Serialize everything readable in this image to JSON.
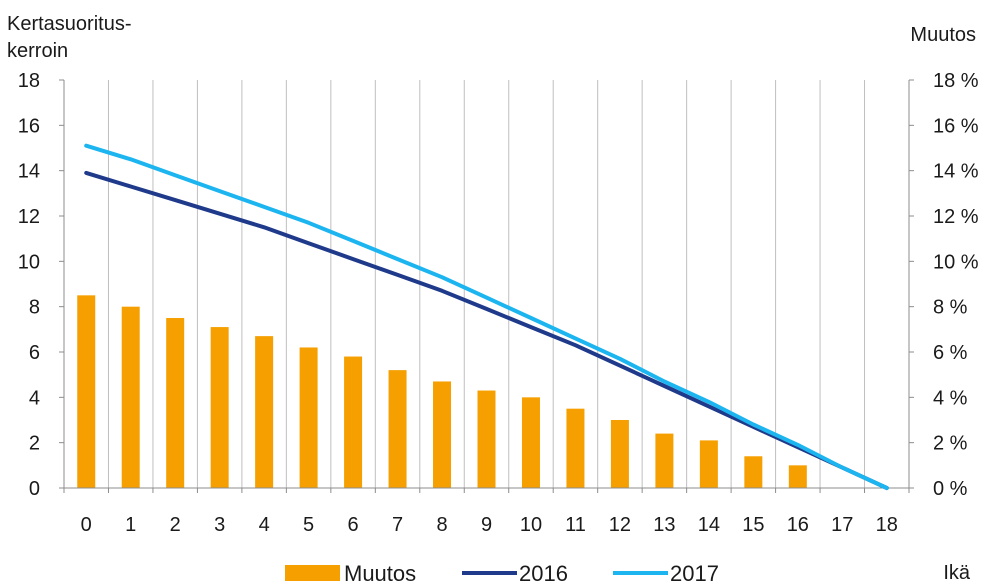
{
  "chart_data": {
    "type": "bar+line",
    "left_axis_label_line1": "Kertasuoritus-",
    "left_axis_label_line2": "kerroin",
    "right_axis_label": "Muutos",
    "xlabel": "Ikä",
    "categories": [
      "0",
      "1",
      "2",
      "3",
      "4",
      "5",
      "6",
      "7",
      "8",
      "9",
      "10",
      "11",
      "12",
      "13",
      "14",
      "15",
      "16",
      "17",
      "18"
    ],
    "y_left": {
      "min": 0,
      "max": 18,
      "ticks": [
        0,
        2,
        4,
        6,
        8,
        10,
        12,
        14,
        16,
        18
      ]
    },
    "y_right": {
      "min": 0,
      "max": 18,
      "ticks": [
        "0 %",
        "2 %",
        "4 %",
        "6 %",
        "8 %",
        "10 %",
        "12 %",
        "14 %",
        "16 %",
        "18 %"
      ]
    },
    "grid": "vertical",
    "legend_position": "bottom",
    "bars": {
      "name": "Muutos",
      "axis": "right",
      "unit": "%",
      "color": "#F5A000",
      "values": [
        8.5,
        8.0,
        7.5,
        7.1,
        6.7,
        6.2,
        5.8,
        5.2,
        4.7,
        4.3,
        4.0,
        3.5,
        3.0,
        2.4,
        2.1,
        1.4,
        1.0,
        null,
        null
      ]
    },
    "series": [
      {
        "name": "2016",
        "axis": "left",
        "color": "#1F3A8A",
        "values": [
          13.9,
          13.3,
          12.7,
          12.1,
          11.5,
          10.8,
          10.1,
          9.4,
          8.7,
          7.9,
          7.1,
          6.3,
          5.4,
          4.5,
          3.6,
          2.7,
          1.8,
          0.9,
          0.0
        ]
      },
      {
        "name": "2017",
        "axis": "left",
        "color": "#1CB5F0",
        "values": [
          15.1,
          14.5,
          13.8,
          13.1,
          12.4,
          11.7,
          10.9,
          10.1,
          9.3,
          8.4,
          7.5,
          6.6,
          5.7,
          4.7,
          3.8,
          2.8,
          1.9,
          0.9,
          0.0
        ]
      }
    ]
  }
}
